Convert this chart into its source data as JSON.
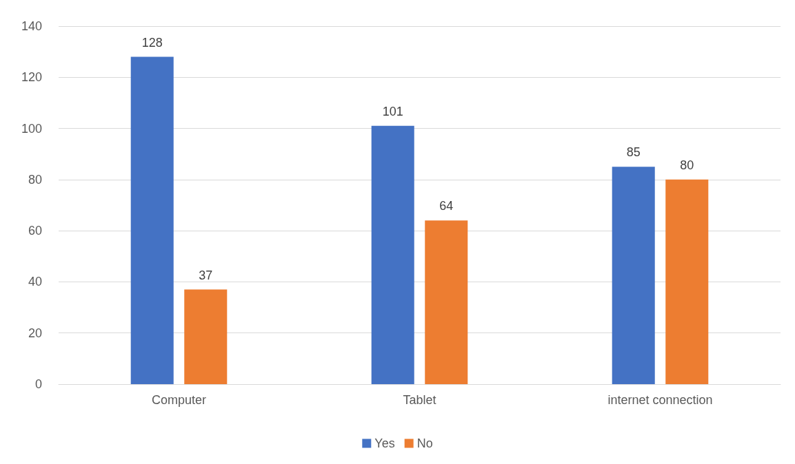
{
  "chart_data": {
    "type": "bar",
    "categories": [
      "Computer",
      "Tablet",
      "internet connection"
    ],
    "series": [
      {
        "name": "Yes",
        "color": "#4472c4",
        "values": [
          128,
          101,
          85
        ]
      },
      {
        "name": "No",
        "color": "#ed7d31",
        "values": [
          37,
          64,
          80
        ]
      }
    ],
    "ylim": [
      0,
      140
    ],
    "yticks": [
      0,
      20,
      40,
      60,
      80,
      100,
      120,
      140
    ],
    "grid": "y",
    "legend": "bottom",
    "data_labels": true
  }
}
